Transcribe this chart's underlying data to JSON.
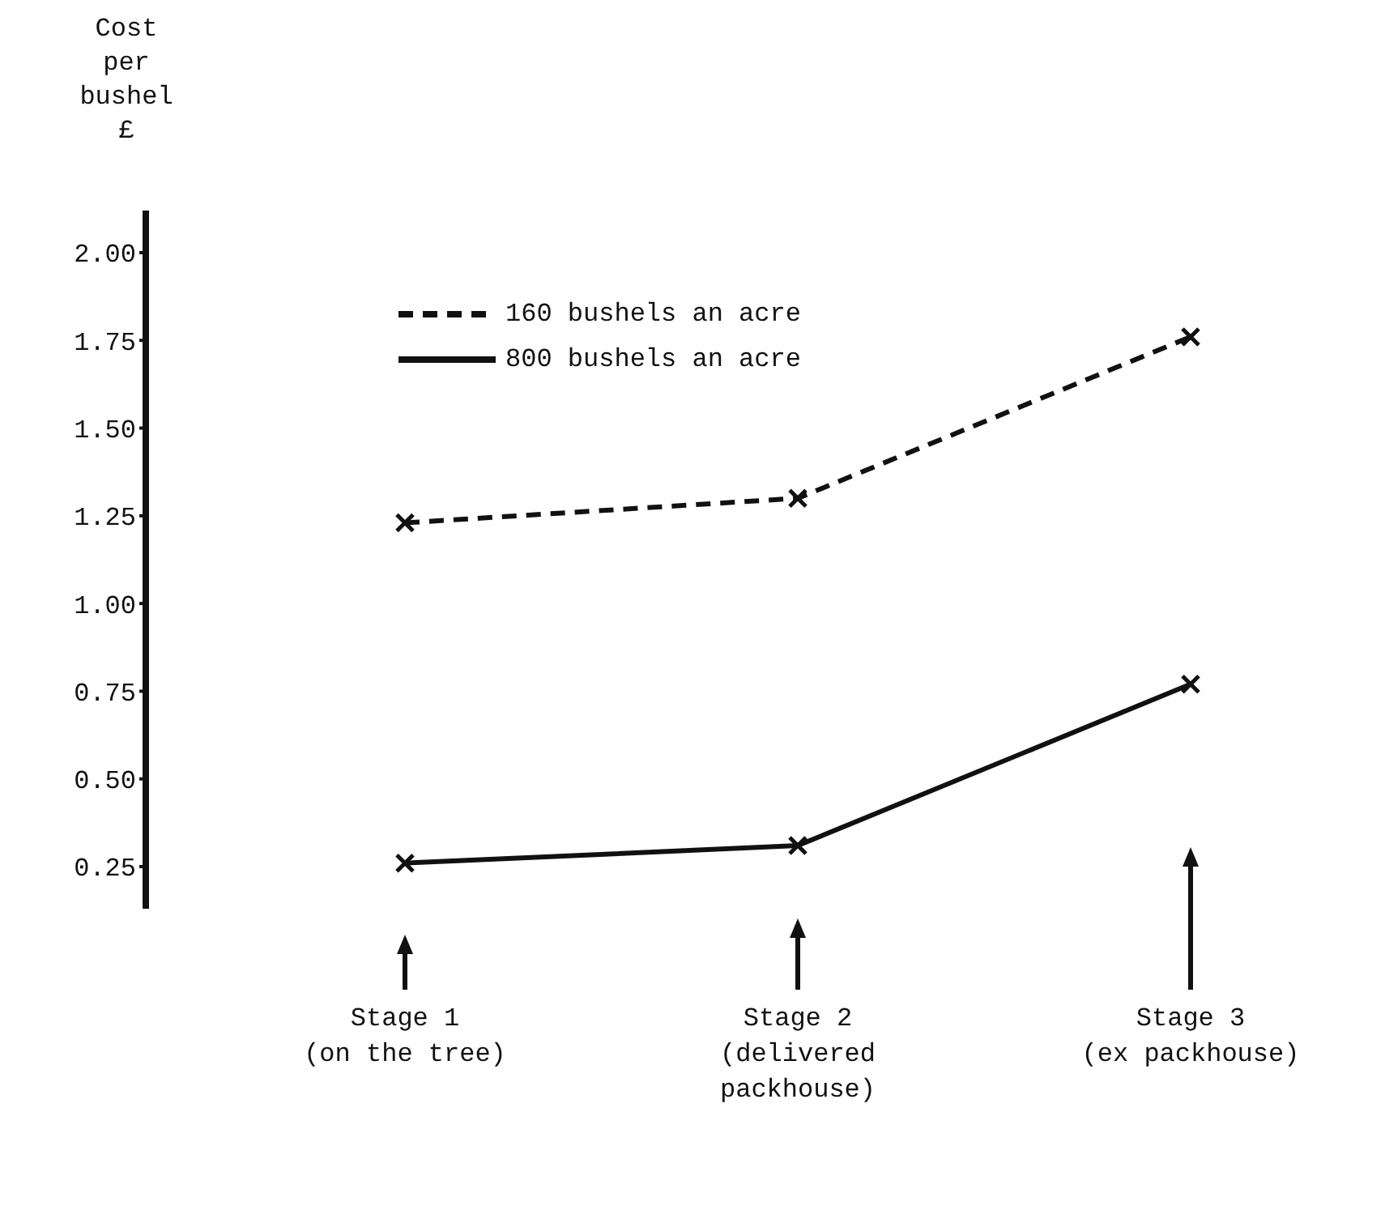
{
  "chart_data": {
    "type": "line",
    "ylabel": "Cost\nper\nbushel\n£",
    "categories": [
      "Stage 1\n(on the tree)",
      "Stage 2\n(delivered\npackhouse)",
      "Stage 3\n(ex packhouse)"
    ],
    "series": [
      {
        "name": "160 bushels an acre",
        "color": "#111111",
        "line_style": "dashed",
        "values": [
          1.23,
          1.3,
          1.76
        ]
      },
      {
        "name": "800 bushels an acre",
        "color": "#111111",
        "line_style": "solid",
        "values": [
          0.26,
          0.31,
          0.77
        ]
      }
    ],
    "ylim": [
      0.13,
      2.12
    ],
    "yticks": [
      {
        "value": 0.25,
        "label": "0.25"
      },
      {
        "value": 0.5,
        "label": "0.50"
      },
      {
        "value": 0.75,
        "label": "0.75"
      },
      {
        "value": 1.0,
        "label": "1.00"
      },
      {
        "value": 1.25,
        "label": "1.25"
      },
      {
        "value": 1.5,
        "label": "1.50"
      },
      {
        "value": 1.75,
        "label": "1.75"
      },
      {
        "value": 2.0,
        "label": "2.00"
      }
    ],
    "marker": "cross",
    "grid": false,
    "legend": "top left"
  }
}
